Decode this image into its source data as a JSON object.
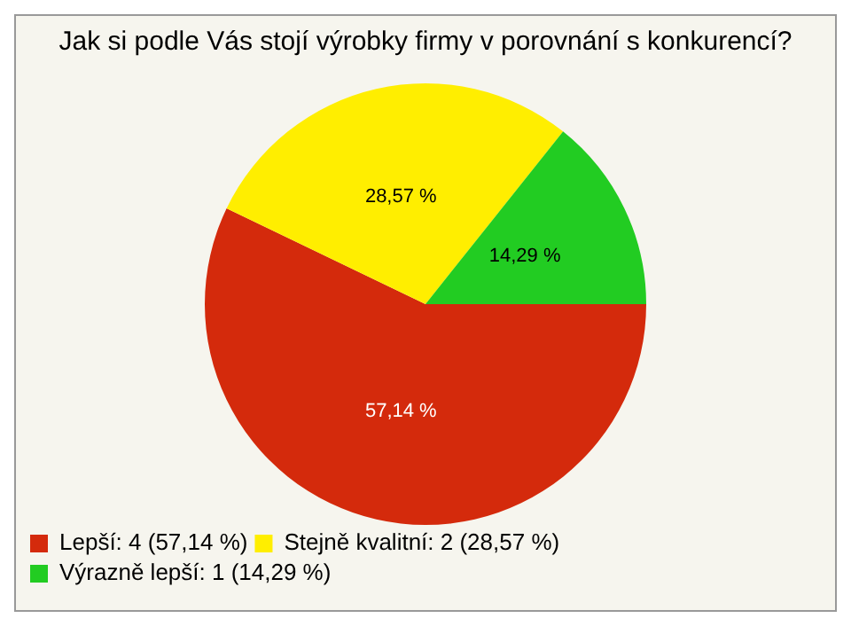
{
  "chart_data": {
    "type": "pie",
    "title": "Jak si podle Vás stojí výrobky firmy v porovnání s konkurencí?",
    "categories": [
      "Lepší: 4 (57,14 %)",
      "Stejně kvalitní: 2 (28,57 %)",
      "Výrazně lepší: 1 (14,29 %)"
    ],
    "values": [
      57.14,
      28.57,
      14.29
    ],
    "value_labels": [
      "57,14 %",
      "28,57 %",
      "14,29 %"
    ],
    "colors": [
      "#d42a0c",
      "#ffee00",
      "#22cc22"
    ],
    "legend": "bottom left"
  }
}
